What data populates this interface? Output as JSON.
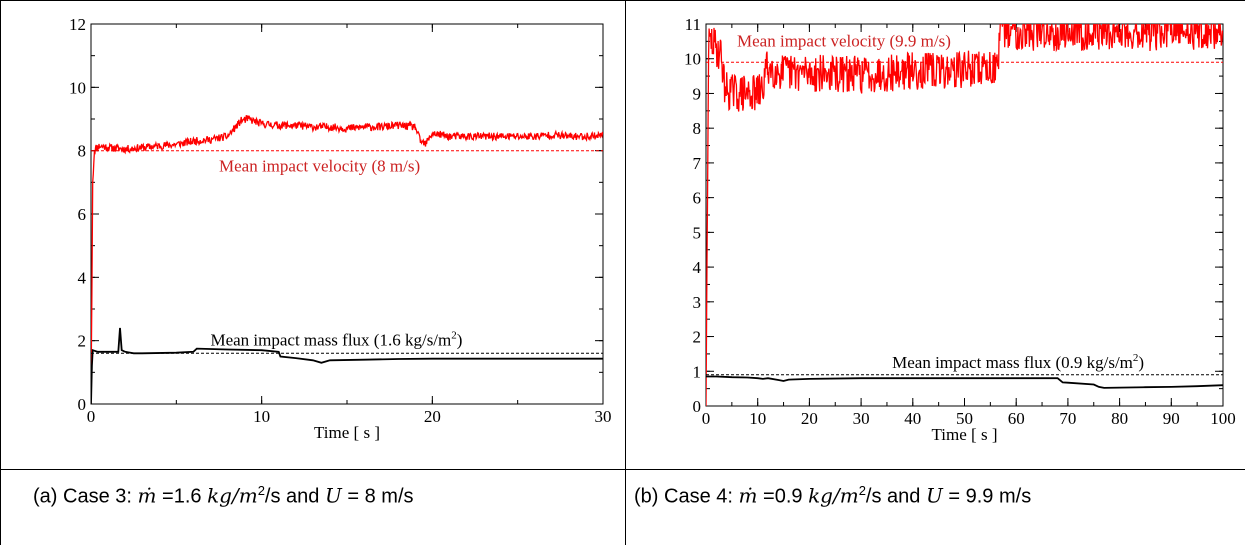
{
  "chart_data": [
    {
      "type": "line",
      "xlabel": "Time [ s ]",
      "ylabel": "",
      "xlim": [
        0,
        30
      ],
      "ylim": [
        0,
        12
      ],
      "x_ticks": [
        0,
        10,
        20,
        30
      ],
      "y_ticks": [
        0,
        2,
        4,
        6,
        8,
        10,
        12
      ],
      "series": [
        {
          "name": "",
          "color": "#ff0000",
          "style": "noisy-solid",
          "x": [
            0,
            0.05,
            0.1,
            0.2,
            0.3,
            0.5,
            1,
            2,
            3,
            4,
            5,
            6,
            7,
            8,
            8.8,
            9.2,
            10,
            11,
            12,
            13,
            14,
            15,
            16,
            17,
            18,
            19,
            19.3,
            19.6,
            20,
            21,
            22,
            23,
            24,
            25,
            26,
            27,
            28,
            29,
            30
          ],
          "values": [
            0,
            3.5,
            7,
            8.0,
            8.1,
            8.15,
            8.1,
            8.05,
            8.1,
            8.15,
            8.2,
            8.3,
            8.35,
            8.45,
            8.95,
            9.0,
            8.85,
            8.8,
            8.8,
            8.75,
            8.75,
            8.7,
            8.75,
            8.75,
            8.8,
            8.75,
            8.3,
            8.2,
            8.55,
            8.45,
            8.45,
            8.45,
            8.45,
            8.45,
            8.45,
            8.5,
            8.45,
            8.45,
            8.5
          ]
        },
        {
          "name": "",
          "color": "#ff0000",
          "style": "dashed",
          "x": [
            0,
            30
          ],
          "values": [
            8,
            8
          ]
        },
        {
          "name": "",
          "color": "#000000",
          "style": "solid",
          "x": [
            0,
            0.05,
            0.1,
            0.4,
            1,
            1.6,
            1.7,
            1.8,
            2,
            2.5,
            3,
            5,
            6,
            6.2,
            8,
            10,
            11,
            11.1,
            12,
            13,
            13.5,
            14,
            16,
            18,
            20,
            22,
            25,
            28,
            30
          ],
          "values": [
            0,
            1.2,
            1.7,
            1.65,
            1.65,
            1.65,
            2.4,
            1.7,
            1.65,
            1.6,
            1.6,
            1.62,
            1.65,
            1.75,
            1.72,
            1.7,
            1.65,
            1.5,
            1.45,
            1.38,
            1.3,
            1.38,
            1.4,
            1.42,
            1.43,
            1.43,
            1.43,
            1.43,
            1.43
          ]
        },
        {
          "name": "",
          "color": "#000000",
          "style": "dashed",
          "x": [
            0,
            30
          ],
          "values": [
            1.6,
            1.6
          ]
        }
      ],
      "annotations": [
        {
          "text": "Mean impact velocity (8 m/s)",
          "color": "#cc2222",
          "x": 7.5,
          "y": 7.35
        },
        {
          "text": "Mean impact mass flux (1.6 kg/s/m",
          "sup": "2",
          "close": ")",
          "color": "#000000",
          "x": 7.0,
          "y": 1.85
        }
      ],
      "caption": {
        "prefix": "(a)  Case 3: ",
        "mdot": "ṁ",
        "eq": "  =1.6 ",
        "unit_var": "kg/m",
        "unit_sup": "2",
        "mid": "/s and ",
        "u": "U",
        "rest": " = 8 m/s"
      }
    },
    {
      "type": "line",
      "xlabel": "Time [ s ]",
      "ylabel": "",
      "xlim": [
        0,
        100
      ],
      "ylim": [
        0,
        11
      ],
      "x_ticks": [
        0,
        10,
        20,
        30,
        40,
        50,
        60,
        70,
        80,
        90,
        100
      ],
      "y_ticks": [
        0,
        1,
        2,
        3,
        4,
        5,
        6,
        7,
        8,
        9,
        10,
        11
      ],
      "series": [
        {
          "name": "",
          "color": "#ff0000",
          "style": "noisy-solid",
          "x": [
            0,
            0.5,
            1,
            2,
            3,
            3.5,
            4,
            6,
            8,
            10,
            11,
            11.5,
            12,
            15,
            20,
            25,
            30,
            35,
            40,
            45,
            50,
            55,
            56.5,
            57,
            60,
            65,
            70,
            75,
            80,
            85,
            90,
            95,
            100
          ],
          "values": [
            0,
            10.4,
            10.5,
            10.3,
            10.1,
            9.3,
            9.1,
            9.0,
            9.0,
            9.0,
            9.1,
            9.7,
            9.75,
            9.6,
            9.6,
            9.55,
            9.55,
            9.6,
            9.65,
            9.65,
            9.7,
            9.75,
            9.8,
            10.8,
            10.8,
            10.75,
            10.8,
            10.8,
            10.8,
            10.75,
            10.8,
            10.8,
            10.8
          ]
        },
        {
          "name": "",
          "color": "#ff0000",
          "style": "dashed",
          "x": [
            0,
            100
          ],
          "values": [
            9.9,
            9.9
          ]
        },
        {
          "name": "",
          "color": "#000000",
          "style": "solid",
          "x": [
            0,
            2,
            5,
            8,
            10,
            11,
            12,
            14,
            15,
            16,
            20,
            30,
            40,
            50,
            60,
            68,
            69,
            70,
            75,
            76,
            77,
            80,
            85,
            90,
            95,
            100
          ],
          "values": [
            0.85,
            0.85,
            0.83,
            0.82,
            0.8,
            0.78,
            0.8,
            0.75,
            0.72,
            0.76,
            0.78,
            0.8,
            0.8,
            0.8,
            0.8,
            0.8,
            0.68,
            0.67,
            0.62,
            0.55,
            0.52,
            0.53,
            0.54,
            0.55,
            0.57,
            0.6
          ]
        },
        {
          "name": "",
          "color": "#000000",
          "style": "dashed",
          "x": [
            0,
            100
          ],
          "values": [
            0.9,
            0.9
          ]
        }
      ],
      "annotations": [
        {
          "text": "Mean impact velocity (9.9 m/s)",
          "color": "#cc2222",
          "x": 6,
          "y": 10.35
        },
        {
          "text": "Mean impact mass flux (0.9 kg/s/m",
          "sup": "2",
          "close": ")",
          "color": "#000000",
          "x": 36,
          "y": 1.1
        }
      ],
      "caption": {
        "prefix": "(b)  Case 4: ",
        "mdot": "ṁ",
        "eq": "  =0.9 ",
        "unit_var": "kg/m",
        "unit_sup": "2",
        "mid": "/s and ",
        "u": "U",
        "rest": " = 9.9 m/s"
      }
    }
  ]
}
